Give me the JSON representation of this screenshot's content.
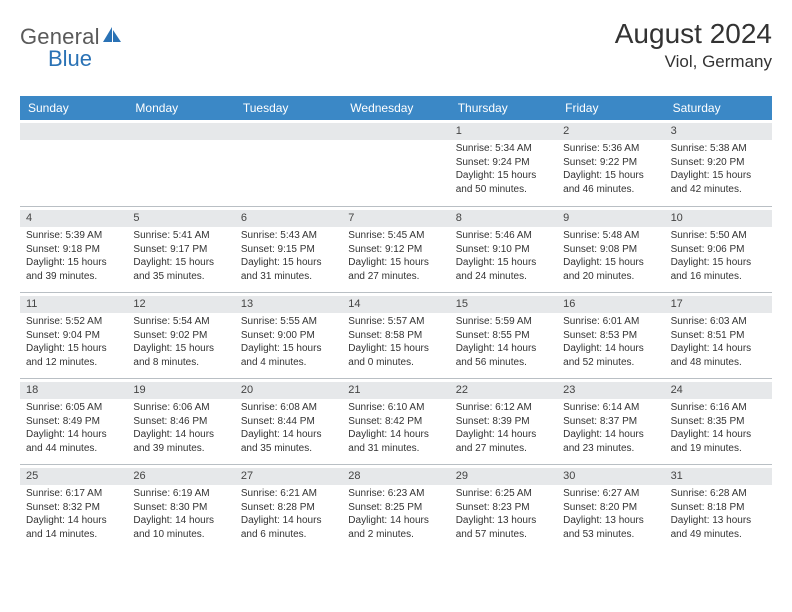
{
  "brand": {
    "text1": "General",
    "text2": "Blue",
    "grayColor": "#5a5a5a",
    "blueColor": "#2a72b5"
  },
  "title": "August 2024",
  "location": "Viol, Germany",
  "colors": {
    "headerBar": "#3b88c6",
    "dayStripe": "#e6e8ea",
    "divider": "#b9bfc4",
    "text": "#333333"
  },
  "typography": {
    "titleSize": 28,
    "locationSize": 17,
    "dayHeaderSize": 12,
    "bodySize": 10
  },
  "dayNames": [
    "Sunday",
    "Monday",
    "Tuesday",
    "Wednesday",
    "Thursday",
    "Friday",
    "Saturday"
  ],
  "layout": {
    "columns": 7,
    "rows": 5,
    "firstDayColumn": 4
  },
  "days": [
    {
      "n": 1,
      "sr": "5:34 AM",
      "ss": "9:24 PM",
      "dl": "15 hours and 50 minutes."
    },
    {
      "n": 2,
      "sr": "5:36 AM",
      "ss": "9:22 PM",
      "dl": "15 hours and 46 minutes."
    },
    {
      "n": 3,
      "sr": "5:38 AM",
      "ss": "9:20 PM",
      "dl": "15 hours and 42 minutes."
    },
    {
      "n": 4,
      "sr": "5:39 AM",
      "ss": "9:18 PM",
      "dl": "15 hours and 39 minutes."
    },
    {
      "n": 5,
      "sr": "5:41 AM",
      "ss": "9:17 PM",
      "dl": "15 hours and 35 minutes."
    },
    {
      "n": 6,
      "sr": "5:43 AM",
      "ss": "9:15 PM",
      "dl": "15 hours and 31 minutes."
    },
    {
      "n": 7,
      "sr": "5:45 AM",
      "ss": "9:12 PM",
      "dl": "15 hours and 27 minutes."
    },
    {
      "n": 8,
      "sr": "5:46 AM",
      "ss": "9:10 PM",
      "dl": "15 hours and 24 minutes."
    },
    {
      "n": 9,
      "sr": "5:48 AM",
      "ss": "9:08 PM",
      "dl": "15 hours and 20 minutes."
    },
    {
      "n": 10,
      "sr": "5:50 AM",
      "ss": "9:06 PM",
      "dl": "15 hours and 16 minutes."
    },
    {
      "n": 11,
      "sr": "5:52 AM",
      "ss": "9:04 PM",
      "dl": "15 hours and 12 minutes."
    },
    {
      "n": 12,
      "sr": "5:54 AM",
      "ss": "9:02 PM",
      "dl": "15 hours and 8 minutes."
    },
    {
      "n": 13,
      "sr": "5:55 AM",
      "ss": "9:00 PM",
      "dl": "15 hours and 4 minutes."
    },
    {
      "n": 14,
      "sr": "5:57 AM",
      "ss": "8:58 PM",
      "dl": "15 hours and 0 minutes."
    },
    {
      "n": 15,
      "sr": "5:59 AM",
      "ss": "8:55 PM",
      "dl": "14 hours and 56 minutes."
    },
    {
      "n": 16,
      "sr": "6:01 AM",
      "ss": "8:53 PM",
      "dl": "14 hours and 52 minutes."
    },
    {
      "n": 17,
      "sr": "6:03 AM",
      "ss": "8:51 PM",
      "dl": "14 hours and 48 minutes."
    },
    {
      "n": 18,
      "sr": "6:05 AM",
      "ss": "8:49 PM",
      "dl": "14 hours and 44 minutes."
    },
    {
      "n": 19,
      "sr": "6:06 AM",
      "ss": "8:46 PM",
      "dl": "14 hours and 39 minutes."
    },
    {
      "n": 20,
      "sr": "6:08 AM",
      "ss": "8:44 PM",
      "dl": "14 hours and 35 minutes."
    },
    {
      "n": 21,
      "sr": "6:10 AM",
      "ss": "8:42 PM",
      "dl": "14 hours and 31 minutes."
    },
    {
      "n": 22,
      "sr": "6:12 AM",
      "ss": "8:39 PM",
      "dl": "14 hours and 27 minutes."
    },
    {
      "n": 23,
      "sr": "6:14 AM",
      "ss": "8:37 PM",
      "dl": "14 hours and 23 minutes."
    },
    {
      "n": 24,
      "sr": "6:16 AM",
      "ss": "8:35 PM",
      "dl": "14 hours and 19 minutes."
    },
    {
      "n": 25,
      "sr": "6:17 AM",
      "ss": "8:32 PM",
      "dl": "14 hours and 14 minutes."
    },
    {
      "n": 26,
      "sr": "6:19 AM",
      "ss": "8:30 PM",
      "dl": "14 hours and 10 minutes."
    },
    {
      "n": 27,
      "sr": "6:21 AM",
      "ss": "8:28 PM",
      "dl": "14 hours and 6 minutes."
    },
    {
      "n": 28,
      "sr": "6:23 AM",
      "ss": "8:25 PM",
      "dl": "14 hours and 2 minutes."
    },
    {
      "n": 29,
      "sr": "6:25 AM",
      "ss": "8:23 PM",
      "dl": "13 hours and 57 minutes."
    },
    {
      "n": 30,
      "sr": "6:27 AM",
      "ss": "8:20 PM",
      "dl": "13 hours and 53 minutes."
    },
    {
      "n": 31,
      "sr": "6:28 AM",
      "ss": "8:18 PM",
      "dl": "13 hours and 49 minutes."
    }
  ],
  "labels": {
    "sunrise": "Sunrise:",
    "sunset": "Sunset:",
    "daylight": "Daylight:"
  }
}
